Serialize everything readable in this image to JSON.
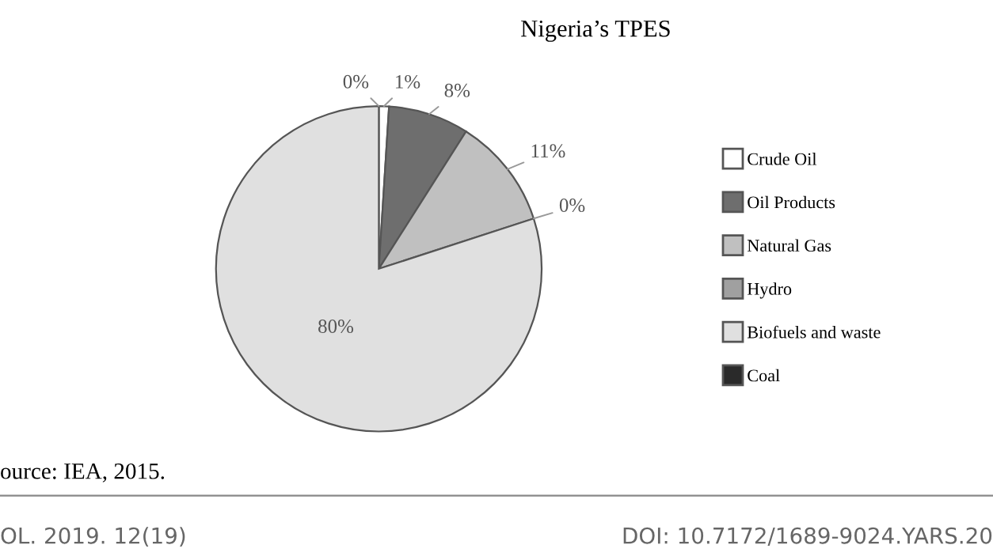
{
  "chart_data": {
    "type": "pie",
    "title": "Nigeria’s TPES",
    "categories": [
      "Crude Oil",
      "Oil Products",
      "Natural Gas",
      "Hydro",
      "Biofuels and waste",
      "Coal"
    ],
    "values": [
      1,
      8,
      11,
      0,
      80,
      0
    ],
    "colors": [
      "#ffffff",
      "#6e6e6e",
      "#c0c0c0",
      "#a0a0a0",
      "#e0e0e0",
      "#2a2a2a"
    ],
    "value_labels": [
      "1%",
      "8%",
      "11%",
      "0%",
      "80%",
      "0%"
    ],
    "legend": "right",
    "annotations": [
      "ource: IEA, 2015.",
      "OL. 2019. 12(19)",
      "DOI: 10.7172/1689-9024.YARS.20"
    ]
  }
}
